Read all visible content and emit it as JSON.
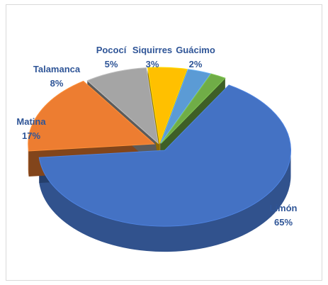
{
  "chart_data": {
    "type": "pie",
    "style": "3d-exploded",
    "legend": "none",
    "labels_show": [
      "category",
      "percent"
    ],
    "slices": [
      {
        "category": "Limón",
        "value": 65,
        "percent_label": "65%",
        "color": "#4472C4"
      },
      {
        "category": "Matina",
        "value": 17,
        "percent_label": "17%",
        "color": "#ED7D31"
      },
      {
        "category": "Talamanca",
        "value": 8,
        "percent_label": "8%",
        "color": "#A5A5A5"
      },
      {
        "category": "Pococí",
        "value": 5,
        "percent_label": "5%",
        "color": "#FFC000"
      },
      {
        "category": "Siquirres",
        "value": 3,
        "percent_label": "3%",
        "color": "#5B9BD5"
      },
      {
        "category": "Guácimo",
        "value": 2,
        "percent_label": "2%",
        "color": "#70AD47"
      }
    ],
    "label_color": "#2F5597"
  }
}
